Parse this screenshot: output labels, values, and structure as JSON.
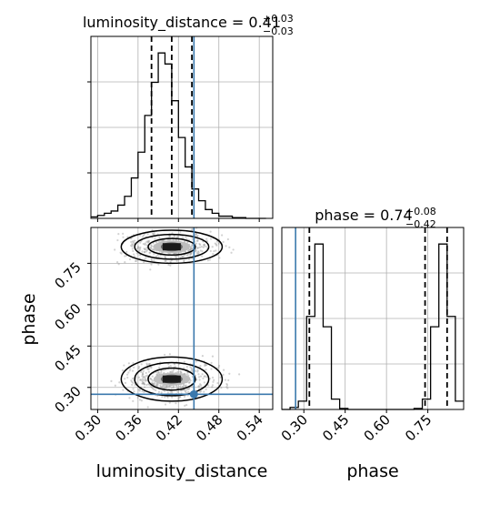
{
  "chart_data": {
    "type": "corner",
    "parameters": [
      "luminosity_distance",
      "phase"
    ],
    "colors": {
      "truth": "#3b79ad",
      "line": "#000000",
      "grid": "#b0b0b0",
      "scatter": "#7f7f7f"
    },
    "panels": {
      "luminosity_distance_hist": {
        "title": "luminosity_distance = 0.41",
        "sup": "+0.03",
        "sub": "−0.03",
        "xlim": [
          0.29,
          0.56
        ],
        "bins": [
          0.29,
          0.3,
          0.31,
          0.32,
          0.33,
          0.34,
          0.35,
          0.36,
          0.37,
          0.38,
          0.39,
          0.4,
          0.41,
          0.42,
          0.43,
          0.44,
          0.45,
          0.46,
          0.47,
          0.48,
          0.49,
          0.5,
          0.51,
          0.52,
          0.53,
          0.54,
          0.55
        ],
        "counts": [
          2,
          4,
          7,
          10,
          18,
          30,
          55,
          90,
          140,
          185,
          225,
          210,
          160,
          110,
          70,
          40,
          24,
          12,
          7,
          3,
          3,
          1,
          1,
          0,
          0,
          0
        ],
        "quantiles": [
          0.38,
          0.41,
          0.44
        ],
        "truth": 0.443
      },
      "phase_hist": {
        "title": "phase = 0.74",
        "sup": "+0.08",
        "sub": "−0.42",
        "xlim": [
          0.22,
          0.88
        ],
        "bins": [
          0.22,
          0.25,
          0.28,
          0.31,
          0.34,
          0.37,
          0.4,
          0.43,
          0.46,
          0.49,
          0.52,
          0.55,
          0.58,
          0.61,
          0.64,
          0.67,
          0.7,
          0.73,
          0.76,
          0.79,
          0.82,
          0.85,
          0.88
        ],
        "counts": [
          0,
          2,
          8,
          90,
          160,
          80,
          10,
          1,
          0,
          0,
          0,
          0,
          0,
          0,
          0,
          0,
          1,
          10,
          80,
          160,
          90,
          8
        ],
        "quantiles": [
          0.32,
          0.74,
          0.82
        ],
        "truth": 0.27
      },
      "joint": {
        "xlim": [
          0.29,
          0.56
        ],
        "ylim": [
          0.22,
          0.88
        ],
        "truth": [
          0.443,
          0.275
        ],
        "modes": [
          {
            "center": [
              0.41,
              0.33
            ],
            "contours": [
              [
                0.035,
                0.04
              ],
              [
                0.055,
                0.06
              ],
              [
                0.075,
                0.08
              ]
            ]
          },
          {
            "center": [
              0.41,
              0.81
            ],
            "contours": [
              [
                0.035,
                0.03
              ],
              [
                0.055,
                0.045
              ],
              [
                0.075,
                0.06
              ]
            ]
          }
        ]
      }
    },
    "axes": {
      "x_luminosity_ticks": [
        "0.30",
        "0.36",
        "0.42",
        "0.48",
        "0.54"
      ],
      "x_phase_ticks": [
        "0.30",
        "0.45",
        "0.60",
        "0.75"
      ],
      "y_phase_ticks": [
        "0.30",
        "0.45",
        "0.60",
        "0.75"
      ],
      "xlabel_left": "luminosity_distance",
      "xlabel_right": "phase",
      "ylabel": "phase"
    }
  }
}
